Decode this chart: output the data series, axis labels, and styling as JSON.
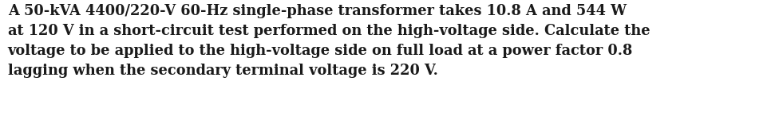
{
  "text": "A 50-kVA 4400/220-V 60-Hz single-phase transformer takes 10.8 A and 544 W\nat 120 V in a short-circuit test performed on the high-voltage side. Calculate the\nvoltage to be applied to the high-voltage side on full load at a power factor 0.8\nlagging when the secondary terminal voltage is 220 V.",
  "background_color": "#ffffff",
  "text_color": "#1a1a1a",
  "font_size": 12.8,
  "font_family": "serif",
  "font_weight": "bold",
  "fig_width": 9.71,
  "fig_height": 1.51
}
